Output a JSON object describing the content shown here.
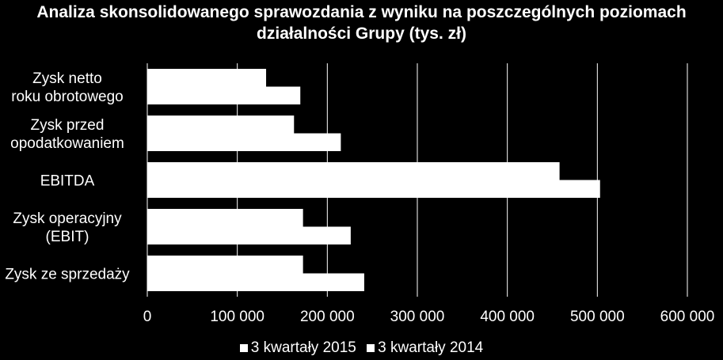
{
  "chart_data": {
    "type": "bar",
    "orientation": "horizontal",
    "title": "Analiza skonsolidowanego sprawozdania z wyniku na poszczególnych poziomach działalności Grupy (tys. zł)",
    "categories": [
      "Zysk netto roku obrotowego",
      "Zysk przed opodatkowaniem",
      "EBITDA",
      "Zysk operacyjny (EBIT)",
      "Zysk ze sprzedaży"
    ],
    "category_label_lines": [
      [
        "Zysk netto",
        "roku obrotowego"
      ],
      [
        "Zysk przed",
        "opodatkowaniem"
      ],
      [
        "EBITDA"
      ],
      [
        "Zysk operacyjny",
        "(EBIT)"
      ],
      [
        "Zysk ze sprzedaży"
      ]
    ],
    "series": [
      {
        "name": "3 kwartały 2015",
        "values": [
          132000,
          163000,
          458000,
          173000,
          173000
        ]
      },
      {
        "name": "3 kwartały 2014",
        "values": [
          170000,
          215000,
          503000,
          226000,
          241000
        ]
      }
    ],
    "xlim": [
      0,
      600000
    ],
    "xticks": [
      0,
      100000,
      200000,
      300000,
      400000,
      500000,
      600000
    ],
    "xtick_labels": [
      "0",
      "100 000",
      "200 000",
      "300 000",
      "400 000",
      "500 000",
      "600 000"
    ],
    "grid": true,
    "legend_position": "bottom",
    "colors": {
      "background": "#000000",
      "bars": "#ffffff",
      "grid": "#ffffff",
      "text": "#ffffff"
    }
  }
}
